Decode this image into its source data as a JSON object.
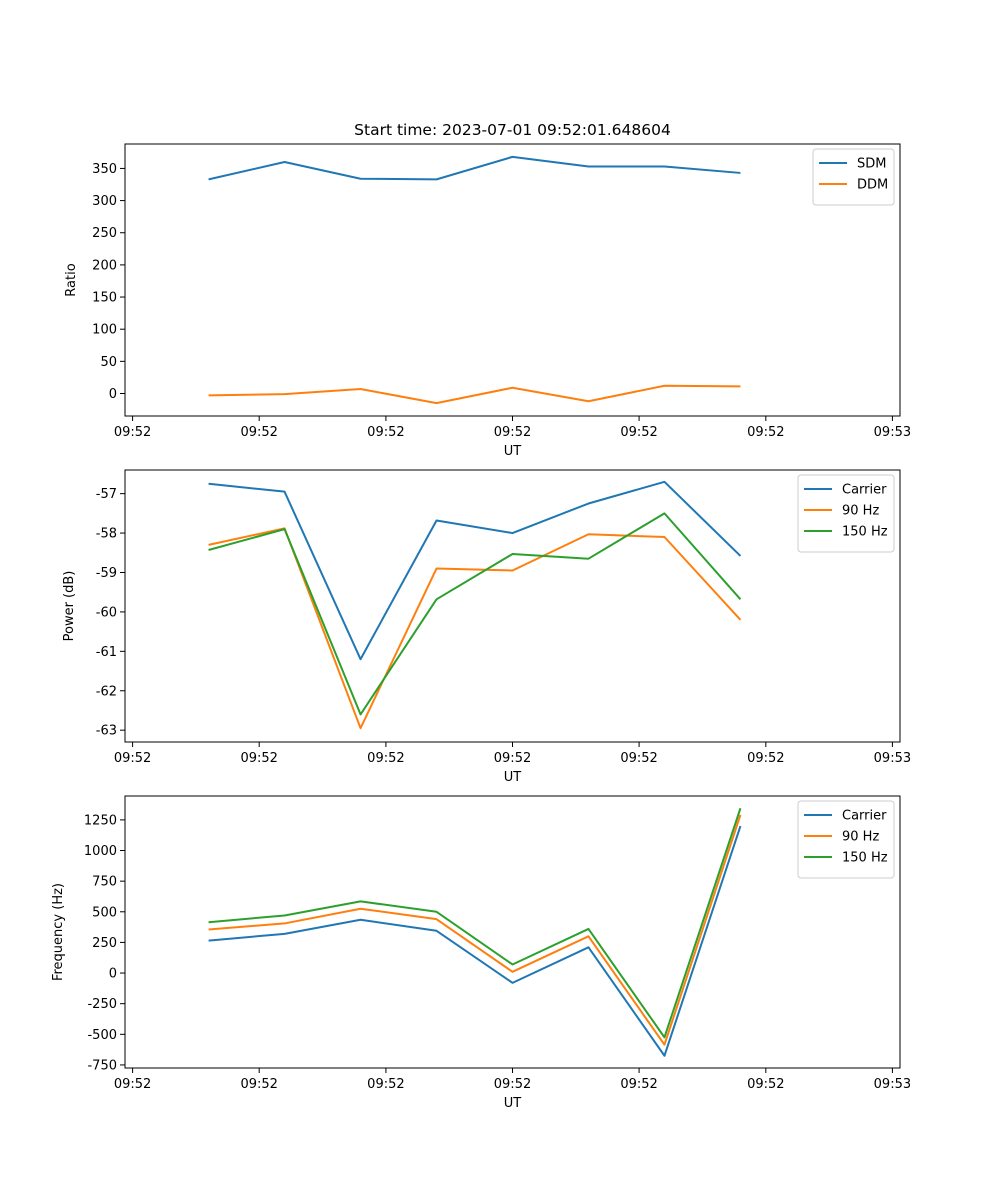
{
  "chart_data": [
    {
      "type": "line",
      "title": "Start time: 2023-07-01 09:52:01.648604",
      "xlabel": "UT",
      "ylabel": "Ratio",
      "x": [
        0.5,
        1.0,
        1.5,
        2.0,
        2.5,
        3.0,
        3.5,
        4.0
      ],
      "xlim": [
        -0.05,
        5.05
      ],
      "xticks": [
        0,
        0.833,
        1.667,
        2.5,
        3.333,
        4.167,
        5.0
      ],
      "xtick_labels": [
        "09:52",
        "09:52",
        "09:52",
        "09:52",
        "09:52",
        "09:52",
        "09:53"
      ],
      "ylim": [
        -35,
        388
      ],
      "yticks": [
        0,
        50,
        100,
        150,
        200,
        250,
        300,
        350
      ],
      "legend": "top-right",
      "series": [
        {
          "name": "SDM",
          "color": "#1f77b4",
          "values": [
            333,
            360,
            334,
            333,
            368,
            353,
            353,
            343
          ]
        },
        {
          "name": "DDM",
          "color": "#ff7f0e",
          "values": [
            -3,
            -1,
            7,
            -15,
            9,
            -12,
            12,
            11
          ]
        }
      ]
    },
    {
      "type": "line",
      "title": "",
      "xlabel": "UT",
      "ylabel": "Power (dB)",
      "x": [
        0.5,
        1.0,
        1.5,
        2.0,
        2.5,
        3.0,
        3.5,
        4.0
      ],
      "xlim": [
        -0.05,
        5.05
      ],
      "xticks": [
        0,
        0.833,
        1.667,
        2.5,
        3.333,
        4.167,
        5.0
      ],
      "xtick_labels": [
        "09:52",
        "09:52",
        "09:52",
        "09:52",
        "09:52",
        "09:52",
        "09:53"
      ],
      "ylim": [
        -63.3,
        -56.4
      ],
      "yticks": [
        -63,
        -62,
        -61,
        -60,
        -59,
        -58,
        -57
      ],
      "legend": "top-right",
      "series": [
        {
          "name": "Carrier",
          "color": "#1f77b4",
          "values": [
            -56.75,
            -56.95,
            -61.2,
            -57.68,
            -58.0,
            -57.25,
            -56.7,
            -58.58
          ]
        },
        {
          "name": "90 Hz",
          "color": "#ff7f0e",
          "values": [
            -58.3,
            -57.88,
            -62.95,
            -58.9,
            -58.95,
            -58.03,
            -58.1,
            -60.2
          ]
        },
        {
          "name": "150 Hz",
          "color": "#2ca02c",
          "values": [
            -58.43,
            -57.9,
            -62.6,
            -59.68,
            -58.53,
            -58.65,
            -57.5,
            -59.68
          ]
        }
      ]
    },
    {
      "type": "line",
      "title": "",
      "xlabel": "UT",
      "ylabel": "Frequency (Hz)",
      "x": [
        0.5,
        1.0,
        1.5,
        2.0,
        2.5,
        3.0,
        3.5,
        4.0
      ],
      "xlim": [
        -0.05,
        5.05
      ],
      "xticks": [
        0,
        0.833,
        1.667,
        2.5,
        3.333,
        4.167,
        5.0
      ],
      "xtick_labels": [
        "09:52",
        "09:52",
        "09:52",
        "09:52",
        "09:52",
        "09:52",
        "09:53"
      ],
      "ylim": [
        -775,
        1445
      ],
      "yticks": [
        -750,
        -500,
        -250,
        0,
        250,
        500,
        750,
        1000,
        1250
      ],
      "legend": "top-right",
      "series": [
        {
          "name": "Carrier",
          "color": "#1f77b4",
          "values": [
            265,
            320,
            435,
            345,
            -80,
            210,
            -675,
            1200
          ]
        },
        {
          "name": "90 Hz",
          "color": "#ff7f0e",
          "values": [
            355,
            405,
            525,
            440,
            10,
            300,
            -585,
            1290
          ]
        },
        {
          "name": "150 Hz",
          "color": "#2ca02c",
          "values": [
            415,
            470,
            585,
            500,
            70,
            360,
            -525,
            1345
          ]
        }
      ]
    }
  ]
}
